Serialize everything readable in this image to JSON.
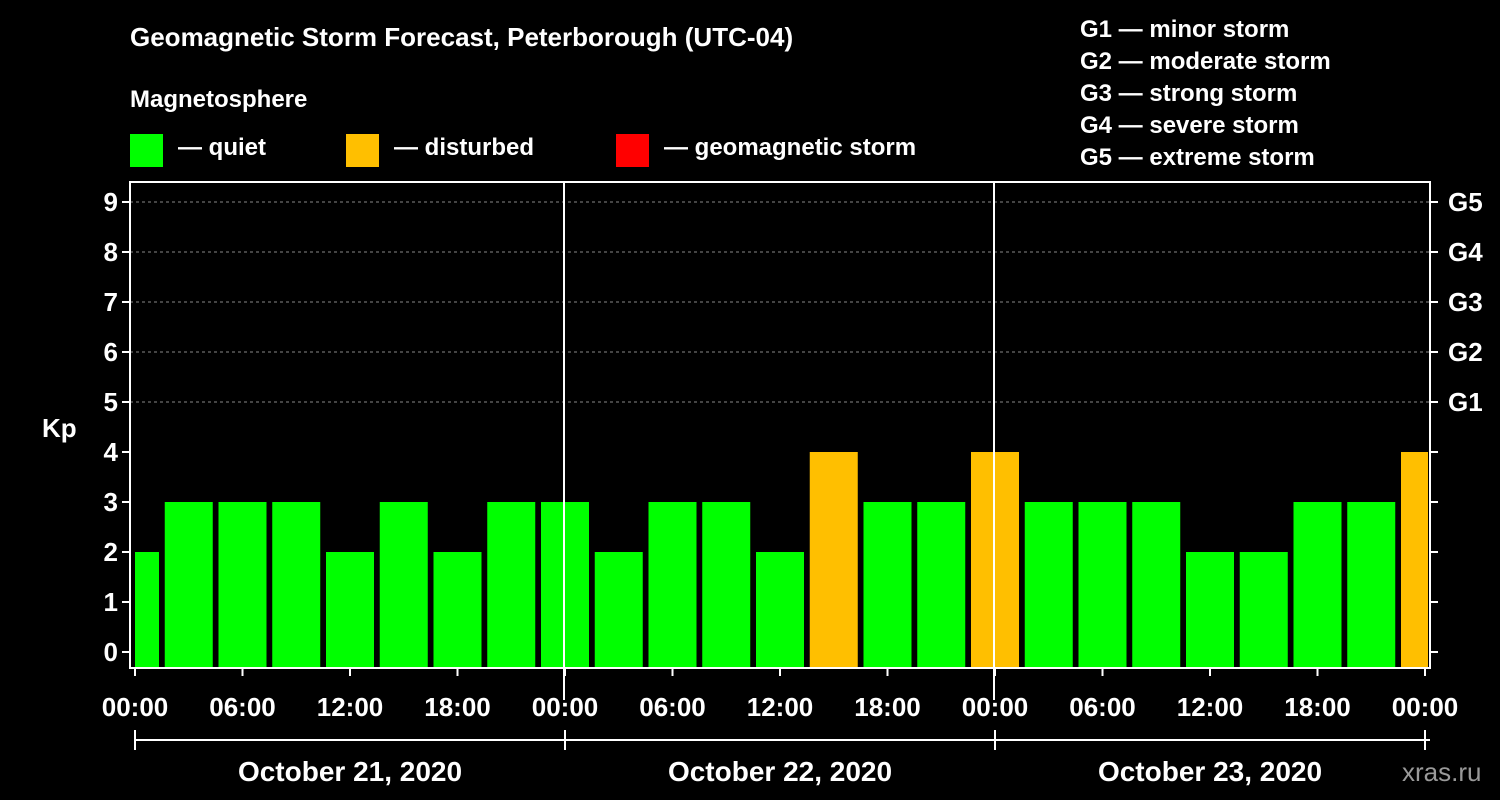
{
  "title": "Geomagnetic Storm Forecast, Peterborough (UTC-04)",
  "legend": {
    "heading": "Magnetosphere",
    "items": [
      {
        "label": "— quiet",
        "color": "#00ff00"
      },
      {
        "label": "— disturbed",
        "color": "#ffbf00"
      },
      {
        "label": "— geomagnetic storm",
        "color": "#ff0000"
      }
    ]
  },
  "g_scale": [
    "G1 — minor storm",
    "G2 — moderate storm",
    "G3 — strong storm",
    "G4 — severe storm",
    "G5 — extreme storm"
  ],
  "credit": "xras.ru",
  "chart_data": {
    "type": "bar",
    "ylabel": "Kp",
    "ylim": [
      0,
      9
    ],
    "yticks": [
      "0",
      "1",
      "2",
      "3",
      "4",
      "5",
      "6",
      "7",
      "8",
      "9"
    ],
    "right_ticks": [
      {
        "kp": 5,
        "label": "G1"
      },
      {
        "kp": 6,
        "label": "G2"
      },
      {
        "kp": 7,
        "label": "G3"
      },
      {
        "kp": 8,
        "label": "G4"
      },
      {
        "kp": 9,
        "label": "G5"
      }
    ],
    "x_hours_range": [
      0,
      72
    ],
    "xtick_labels": [
      "00:00",
      "06:00",
      "12:00",
      "18:00",
      "00:00",
      "06:00",
      "12:00",
      "18:00",
      "00:00",
      "06:00",
      "12:00",
      "18:00",
      "00:00"
    ],
    "days": [
      "October 21, 2020",
      "October 22, 2020",
      "October 23, 2020"
    ],
    "bar_hours": [
      0,
      3,
      6,
      9,
      12,
      15,
      18,
      21,
      24,
      27,
      30,
      33,
      36,
      39,
      42,
      45,
      48,
      51,
      54,
      57,
      60,
      63,
      66,
      69,
      72
    ],
    "values": [
      2,
      3,
      3,
      3,
      2,
      3,
      2,
      3,
      3,
      2,
      3,
      3,
      2,
      4,
      3,
      3,
      4,
      3,
      3,
      3,
      2,
      2,
      3,
      3,
      4
    ],
    "bar_status": [
      "quiet",
      "quiet",
      "quiet",
      "quiet",
      "quiet",
      "quiet",
      "quiet",
      "quiet",
      "quiet",
      "quiet",
      "quiet",
      "quiet",
      "quiet",
      "disturbed",
      "quiet",
      "quiet",
      "disturbed",
      "quiet",
      "quiet",
      "quiet",
      "quiet",
      "quiet",
      "quiet",
      "quiet",
      "disturbed"
    ],
    "status_colors": {
      "quiet": "#00ff00",
      "disturbed": "#ffbf00",
      "storm": "#ff0000"
    }
  }
}
